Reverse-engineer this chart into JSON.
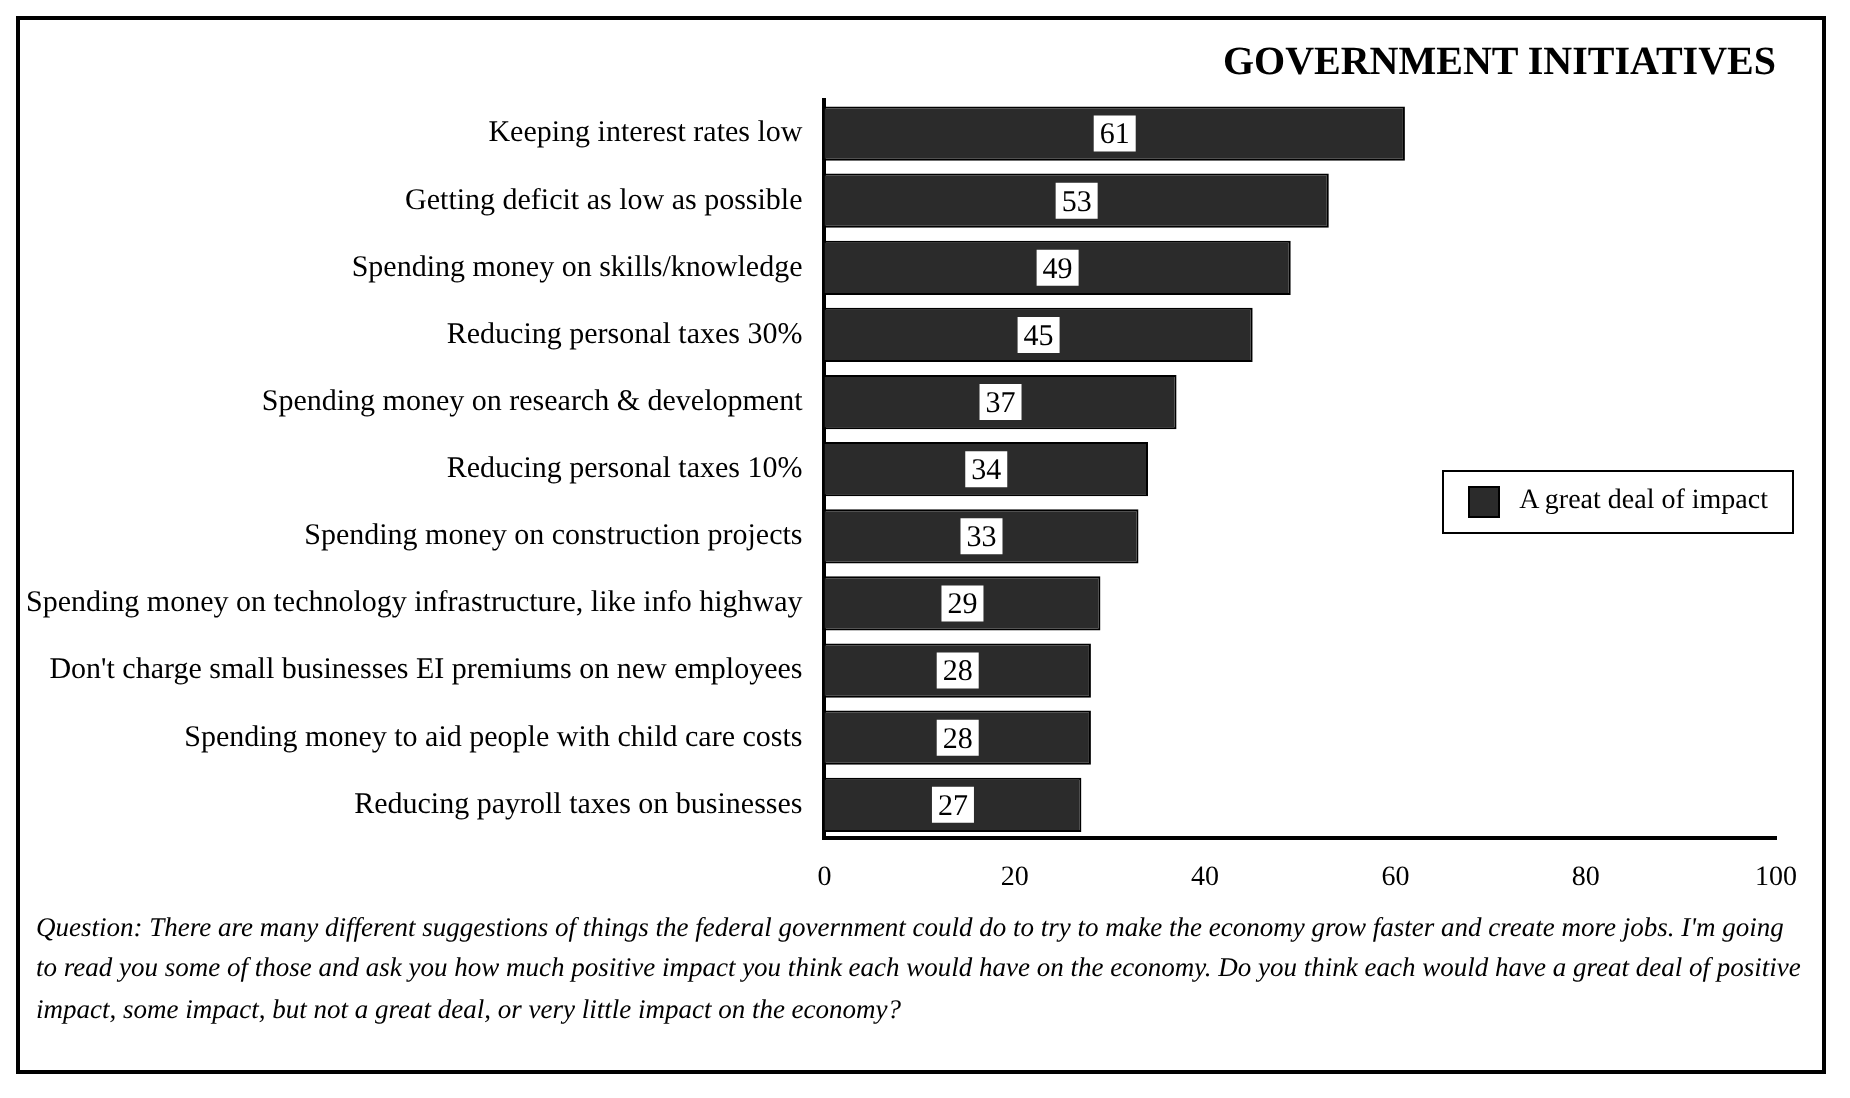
{
  "chart_data": {
    "type": "bar",
    "orientation": "horizontal",
    "title": "GOVERNMENT INITIATIVES",
    "categories": [
      "Keeping interest rates low",
      "Getting deficit as low as possible",
      "Spending money on skills/knowledge",
      "Reducing personal taxes 30%",
      "Spending money on research & development",
      "Reducing personal taxes 10%",
      "Spending money on construction projects",
      "Spending money on technology infrastructure, like info highway",
      "Don't charge small businesses EI premiums on new employees",
      "Spending money to aid people with child care costs",
      "Reducing payroll taxes on businesses"
    ],
    "series": [
      {
        "name": "A great deal of impact",
        "color": "#2b2b2b",
        "values": [
          61,
          53,
          49,
          45,
          37,
          34,
          33,
          29,
          28,
          28,
          27
        ]
      }
    ],
    "xlim": [
      0,
      100
    ],
    "xticks": [
      0,
      20,
      40,
      60,
      80,
      100
    ],
    "grid": false,
    "legend": "right",
    "data_labels": true,
    "annotations": [
      "Question: There are many different suggestions of things the federal government could do to try to make the economy grow faster and create more jobs.  I'm going to read you some of those and ask you how much positive impact you think each would have on the economy.  Do you think each would have a great deal of positive impact, some impact, but not a great deal, or very little impact on the economy?"
    ]
  }
}
